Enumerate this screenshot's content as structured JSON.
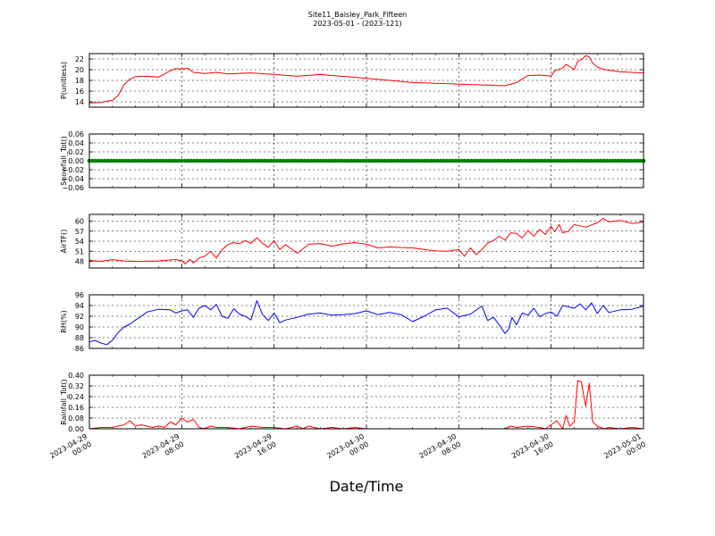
{
  "header": {
    "title": "Site11_Baisley_Park_Fifteen",
    "subtitle": "2023-05-01 - (2023-121)"
  },
  "x_axis": {
    "label": "Date/Time",
    "ticks": [
      {
        "hours": 0,
        "line1": "2023-04-29",
        "line2": "00:00"
      },
      {
        "hours": 8,
        "line1": "2023-04-29",
        "line2": "08:00"
      },
      {
        "hours": 16,
        "line1": "2023-04-29",
        "line2": "16:00"
      },
      {
        "hours": 24,
        "line1": "2023-04-30",
        "line2": "00:00"
      },
      {
        "hours": 32,
        "line1": "2023-04-30",
        "line2": "08:00"
      },
      {
        "hours": 40,
        "line1": "2023-04-30",
        "line2": "16:00"
      },
      {
        "hours": 48,
        "line1": "2023-05-01",
        "line2": "00:00"
      }
    ],
    "range_hours": [
      0,
      48
    ],
    "grid": true
  },
  "chart_data": [
    {
      "type": "line",
      "ylabel": "P(unitless)",
      "color": "#ff0000",
      "ylim": [
        13,
        23
      ],
      "yticks": [
        14,
        16,
        18,
        20,
        22
      ],
      "ytick_labels": [
        "14",
        "16",
        "18",
        "20",
        "22"
      ],
      "x": [
        0,
        1,
        2,
        2.5,
        3,
        3.5,
        4,
        5,
        6,
        7,
        7.5,
        8,
        8.5,
        9,
        10,
        11,
        12,
        14,
        16,
        18,
        20,
        24,
        28,
        32,
        36,
        37,
        38,
        39,
        40,
        40.3,
        41,
        41.3,
        42,
        42.3,
        42.7,
        43,
        43.3,
        43.6,
        44,
        44.5,
        45,
        46,
        47,
        48
      ],
      "y": [
        13.8,
        13.9,
        14.3,
        15.2,
        17.2,
        18.2,
        18.7,
        18.8,
        18.6,
        19.8,
        20.2,
        20.1,
        20.3,
        19.5,
        19.3,
        19.5,
        19.2,
        19.4,
        19.1,
        18.8,
        19.1,
        18.4,
        17.6,
        17.3,
        17.0,
        17.6,
        18.9,
        19.0,
        18.8,
        19.8,
        20.3,
        21.0,
        20.0,
        21.6,
        22.0,
        22.6,
        22.4,
        21.2,
        20.5,
        20.1,
        19.9,
        19.6,
        19.5,
        19.4
      ]
    },
    {
      "type": "line",
      "ylabel": "Snowfall_Tot()",
      "color": "#008000",
      "ylim": [
        -0.06,
        0.06
      ],
      "yticks": [
        -0.06,
        -0.04,
        -0.02,
        0.0,
        0.02,
        0.04,
        0.06
      ],
      "ytick_labels": [
        "−0.06",
        "−0.04",
        "−0.02",
        "0.00",
        "0.02",
        "0.04",
        "0.06"
      ],
      "x": [
        0,
        48
      ],
      "y": [
        0.0,
        0.0
      ],
      "marker": "circle"
    },
    {
      "type": "line",
      "ylabel": "AirTF()",
      "color": "#ff0000",
      "ylim": [
        46,
        62
      ],
      "yticks": [
        48,
        51,
        54,
        57,
        60
      ],
      "ytick_labels": [
        "48",
        "51",
        "54",
        "57",
        "60"
      ],
      "x": [
        0,
        1,
        2,
        3,
        4,
        5,
        6,
        7,
        7.5,
        8,
        8.3,
        8.7,
        9,
        9.5,
        10,
        10.5,
        11,
        11.5,
        12,
        12.5,
        13,
        13.5,
        14,
        14.5,
        15,
        15.5,
        16,
        16.5,
        17,
        18,
        19,
        20,
        21,
        22,
        23,
        24,
        25,
        26,
        27,
        28,
        29,
        30,
        31,
        32,
        32.5,
        33,
        33.5,
        34,
        34.5,
        35,
        35.5,
        36,
        36.5,
        37,
        37.5,
        38,
        38.5,
        39,
        39.5,
        40,
        40.3,
        40.7,
        41,
        41.5,
        42,
        43,
        44,
        44.5,
        45,
        46,
        47,
        48
      ],
      "y": [
        48.3,
        48.0,
        48.5,
        48.1,
        48.0,
        48.0,
        48.1,
        48.4,
        48.5,
        48.2,
        47.2,
        48.6,
        47.5,
        49.0,
        49.5,
        51.0,
        49.0,
        51.5,
        53.0,
        53.6,
        53.2,
        54.2,
        53.4,
        55.0,
        53.4,
        52.2,
        54.2,
        51.5,
        53.0,
        50.4,
        53.1,
        53.3,
        52.5,
        53.2,
        53.6,
        53.1,
        52.0,
        52.3,
        52.1,
        52.0,
        51.5,
        51.1,
        51.0,
        51.5,
        49.5,
        52.0,
        50.0,
        51.5,
        53.5,
        54.2,
        55.5,
        54.3,
        56.5,
        56.3,
        55.0,
        57.2,
        55.5,
        57.5,
        56.0,
        58.5,
        56.8,
        59.0,
        56.5,
        57.0,
        59.0,
        58.2,
        59.5,
        60.8,
        59.8,
        60.2,
        59.3,
        59.7
      ]
    },
    {
      "type": "line",
      "ylabel": "RH(%)",
      "color": "#0000ff",
      "ylim": [
        86,
        96
      ],
      "yticks": [
        86,
        88,
        90,
        92,
        94,
        96
      ],
      "ytick_labels": [
        "86",
        "88",
        "90",
        "92",
        "94",
        "96"
      ],
      "x": [
        0,
        0.5,
        1,
        1.5,
        2,
        2.5,
        3,
        3.5,
        4,
        4.5,
        5,
        6,
        7,
        7.5,
        8,
        8.5,
        9,
        9.5,
        10,
        10.5,
        11,
        11.5,
        12,
        12.5,
        13,
        13.5,
        14,
        14.5,
        15,
        15.5,
        16,
        16.5,
        17,
        18,
        19,
        20,
        21,
        22,
        23,
        24,
        25,
        26,
        27,
        28,
        29,
        30,
        31,
        32,
        33,
        34,
        34.5,
        35,
        35.5,
        36,
        36.3,
        36.6,
        37,
        37.5,
        38,
        38.5,
        39,
        39.5,
        40,
        40.5,
        41,
        42,
        42.5,
        43,
        43.5,
        44,
        44.5,
        45,
        46,
        47,
        48
      ],
      "y": [
        87.2,
        87.5,
        87.0,
        86.7,
        87.5,
        89.0,
        90.0,
        90.5,
        91.3,
        92.0,
        92.8,
        93.3,
        93.2,
        92.6,
        93.0,
        93.2,
        91.8,
        93.5,
        94.0,
        93.2,
        94.2,
        92.0,
        91.6,
        93.4,
        92.4,
        92.0,
        91.3,
        94.9,
        92.3,
        91.2,
        92.6,
        90.8,
        91.3,
        91.8,
        92.4,
        92.6,
        92.2,
        92.3,
        92.5,
        93.0,
        92.3,
        92.7,
        92.3,
        91.0,
        92.0,
        93.2,
        93.5,
        91.9,
        92.4,
        93.9,
        91.2,
        91.8,
        90.4,
        88.8,
        89.5,
        91.8,
        90.4,
        92.6,
        92.2,
        93.5,
        91.9,
        92.5,
        92.8,
        92.0,
        94.0,
        93.5,
        94.3,
        93.2,
        94.5,
        92.5,
        94.0,
        92.7,
        93.2,
        93.3,
        93.9
      ]
    },
    {
      "type": "line",
      "ylabel": "Rainfall_Tot()",
      "color": "#ff0000",
      "ylim": [
        0.0,
        0.4
      ],
      "yticks": [
        0.0,
        0.08,
        0.16,
        0.24,
        0.32,
        0.4
      ],
      "ytick_labels": [
        "0.00",
        "0.08",
        "0.16",
        "0.24",
        "0.32",
        "0.40"
      ],
      "x": [
        0,
        1,
        2,
        2.5,
        3,
        3.5,
        4,
        4.5,
        5,
        5.5,
        6,
        6.5,
        7,
        7.5,
        8,
        8.5,
        9,
        9.5,
        10,
        10.5,
        11,
        12,
        13,
        14,
        15,
        16,
        17,
        18,
        18.5,
        19,
        20,
        21,
        22,
        23,
        24,
        26,
        28,
        30,
        32,
        34,
        36,
        36.5,
        37,
        38,
        39,
        39.5,
        40,
        40.5,
        41,
        41.3,
        41.6,
        42,
        42.3,
        42.6,
        43,
        43.3,
        43.6,
        44,
        44.3,
        44.6,
        45,
        46,
        47,
        48
      ],
      "y": [
        0.0,
        0.01,
        0.01,
        0.02,
        0.03,
        0.06,
        0.02,
        0.03,
        0.02,
        0.01,
        0.02,
        0.01,
        0.05,
        0.03,
        0.08,
        0.05,
        0.07,
        0.01,
        0.0,
        0.02,
        0.01,
        0.01,
        0.0,
        0.02,
        0.01,
        0.01,
        0.0,
        0.02,
        0.0,
        0.02,
        0.0,
        0.01,
        0.0,
        0.01,
        0.0,
        0.0,
        0.0,
        0.0,
        0.0,
        0.0,
        0.0,
        0.02,
        0.01,
        0.02,
        0.01,
        0.0,
        0.03,
        0.06,
        0.0,
        0.1,
        0.02,
        0.05,
        0.36,
        0.35,
        0.17,
        0.34,
        0.05,
        0.02,
        0.01,
        0.0,
        0.01,
        0.0,
        0.01,
        0.0
      ]
    }
  ]
}
